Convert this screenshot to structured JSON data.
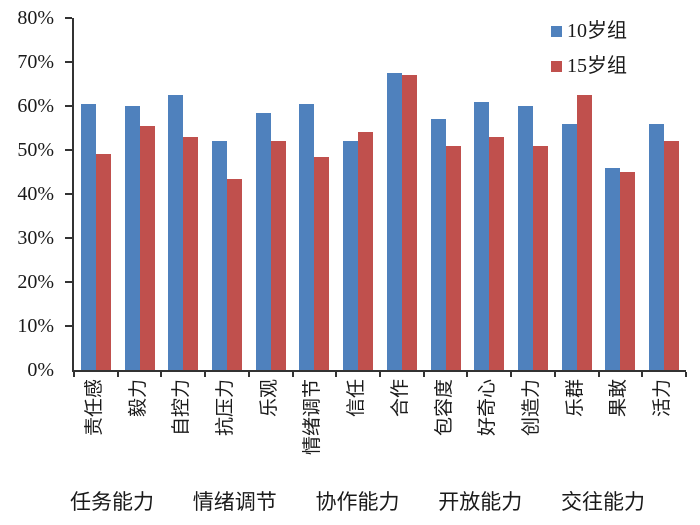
{
  "chart_data": {
    "type": "bar",
    "title": "",
    "xlabel": "",
    "ylabel": "",
    "categories": [
      "责任感",
      "毅力",
      "自控力",
      "抗压力",
      "乐观",
      "情绪调节",
      "信任",
      "合作",
      "包容度",
      "好奇心",
      "创造力",
      "乐群",
      "果敢",
      "活力"
    ],
    "series": [
      {
        "name": "10岁组",
        "color": "#4F81BD",
        "values": [
          60.5,
          60,
          62.5,
          52,
          58.5,
          60.5,
          52,
          67.5,
          57,
          61,
          60,
          56,
          46,
          56
        ]
      },
      {
        "name": "15岁组",
        "color": "#C0504D",
        "values": [
          49,
          55.5,
          53,
          43.5,
          52,
          48.5,
          54,
          67,
          51,
          53,
          51,
          62.5,
          45,
          52
        ]
      }
    ],
    "category_groups": [
      {
        "label": "任务能力",
        "categories": [
          "责任感",
          "毅力",
          "自控力"
        ]
      },
      {
        "label": "情绪调节",
        "categories": [
          "抗压力",
          "乐观",
          "情绪调节"
        ]
      },
      {
        "label": "协作能力",
        "categories": [
          "信任",
          "合作"
        ]
      },
      {
        "label": "开放能力",
        "categories": [
          "包容度",
          "好奇心",
          "创造力"
        ]
      },
      {
        "label": "交往能力",
        "categories": [
          "乐群",
          "果敢",
          "活力"
        ]
      }
    ],
    "y_ticks": [
      "0%",
      "10%",
      "20%",
      "30%",
      "40%",
      "50%",
      "60%",
      "70%",
      "80%"
    ],
    "ylim": [
      0,
      80
    ],
    "grid": false,
    "legend": {
      "position": "top-right",
      "entries": [
        "10岁组",
        "15岁组"
      ]
    }
  },
  "colors": {
    "series_10yo": "#4F81BD",
    "series_15yo": "#C0504D",
    "axis": "#333333",
    "text": "#1a1a1a"
  }
}
